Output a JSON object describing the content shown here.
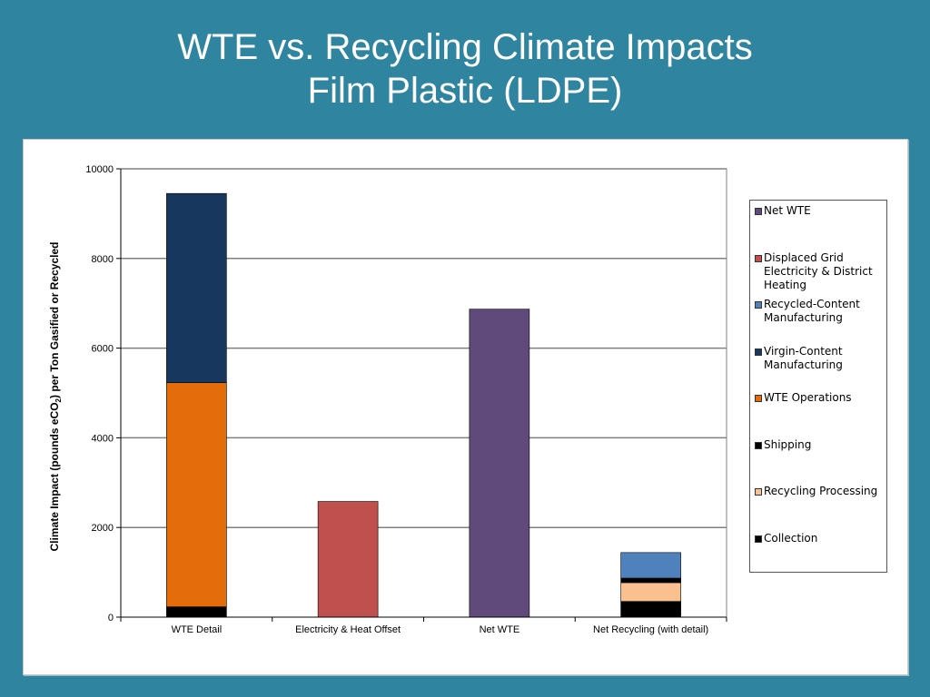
{
  "title": {
    "line1": "WTE vs. Recycling Climate Impacts",
    "line2": "Film Plastic (LDPE)"
  },
  "colors": {
    "background": "#2f84a0",
    "net_wte": "#604a7b",
    "displaced_grid": "#c0504d",
    "recycled_content": "#4f81bd",
    "virgin_content": "#17375e",
    "wte_operations": "#e46c0a",
    "shipping": "#000000",
    "recycling_processing": "#fac090",
    "collection": "#000000"
  },
  "chart_data": {
    "type": "bar",
    "stacked": true,
    "ylabel_main": "Climate Impact (pounds eCO",
    "ylabel_sub": "2",
    "ylabel_tail": ") per Ton Gasified or  Recycled",
    "xlabel": "",
    "ylim": [
      0,
      10000
    ],
    "yticks": [
      "0",
      "2000",
      "4000",
      "6000",
      "8000",
      "10000"
    ],
    "ytick_values": [
      0,
      2000,
      4000,
      6000,
      8000,
      10000
    ],
    "grid": true,
    "legend_position": "right",
    "categories": [
      "WTE Detail",
      "Electricity & Heat Offset",
      "Net WTE",
      "Net Recycling (with detail)"
    ],
    "series": [
      {
        "name": "Net WTE",
        "color_key": "net_wte",
        "values": [
          0,
          0,
          6870,
          0
        ]
      },
      {
        "name": "Displaced Grid Electricity & District Heating",
        "color_key": "displaced_grid",
        "values": [
          0,
          2580,
          0,
          0
        ]
      },
      {
        "name": "Recycled-Content Manufacturing",
        "color_key": "recycled_content",
        "values": [
          0,
          0,
          0,
          570
        ]
      },
      {
        "name": "Virgin-Content Manufacturing",
        "color_key": "virgin_content",
        "values": [
          4220,
          0,
          0,
          0
        ]
      },
      {
        "name": "WTE Operations",
        "color_key": "wte_operations",
        "values": [
          5000,
          0,
          0,
          0
        ]
      },
      {
        "name": "Shipping",
        "color_key": "shipping",
        "values": [
          0,
          0,
          0,
          100
        ]
      },
      {
        "name": "Recycling Processing",
        "color_key": "recycling_processing",
        "values": [
          0,
          0,
          0,
          420
        ]
      },
      {
        "name": "Collection",
        "color_key": "collection",
        "values": [
          230,
          0,
          0,
          350
        ]
      }
    ],
    "stack_order_bottom_to_top": [
      "Collection",
      "Recycling Processing",
      "Shipping",
      "WTE Operations",
      "Virgin-Content Manufacturing",
      "Recycled-Content Manufacturing",
      "Displaced Grid Electricity & District Heating",
      "Net WTE"
    ]
  }
}
